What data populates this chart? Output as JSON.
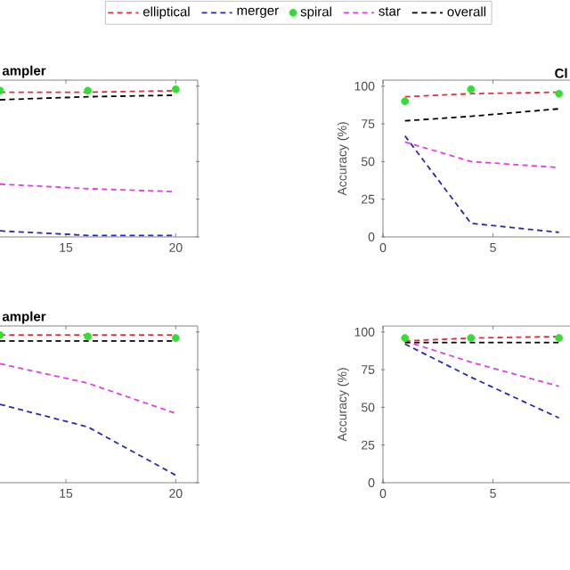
{
  "chart_data": [
    {
      "type": "line",
      "title": "ampler",
      "legend": "top",
      "line_style": "dashed",
      "x": [
        12,
        16,
        20
      ],
      "xlim": [
        12,
        21
      ],
      "ylim": [
        0,
        104
      ],
      "xticks": [
        15,
        20
      ],
      "yticks": [
        0,
        25,
        50,
        75,
        100
      ],
      "tick_labels": "x",
      "series": [
        {
          "name": "elliptical",
          "color": "#e0303a",
          "values": [
            96,
            96,
            97
          ]
        },
        {
          "name": "merger",
          "color": "#2a2aa8",
          "values": [
            4,
            1,
            1
          ]
        },
        {
          "name": "spiral",
          "type": "scatter",
          "color": "#33dd33",
          "values": [
            97,
            97,
            98
          ]
        },
        {
          "name": "star",
          "color": "#e040e0",
          "values": [
            35,
            32,
            30
          ]
        },
        {
          "name": "overall",
          "color": "#000000",
          "values": [
            91,
            93,
            94
          ]
        }
      ]
    },
    {
      "type": "line",
      "title": "Cl",
      "ylabel": "Accuracy (%)",
      "line_style": "dashed",
      "x": [
        1,
        4,
        8
      ],
      "xlim": [
        0,
        8.5
      ],
      "ylim": [
        0,
        104
      ],
      "xticks": [
        0,
        5
      ],
      "yticks": [
        0,
        25,
        50,
        75,
        100
      ],
      "series": [
        {
          "color": "#e0303a",
          "values": [
            93,
            95,
            96
          ]
        },
        {
          "color": "#2a2aa8",
          "values": [
            67,
            9,
            3
          ]
        },
        {
          "type": "scatter",
          "color": "#33dd33",
          "values": [
            90,
            98,
            95
          ]
        },
        {
          "color": "#e040e0",
          "values": [
            63,
            50,
            46
          ]
        },
        {
          "color": "#000000",
          "values": [
            77,
            80,
            85
          ]
        }
      ]
    },
    {
      "type": "line",
      "title": "ampler",
      "line_style": "dashed",
      "x": [
        12,
        16,
        20
      ],
      "xlim": [
        12,
        21
      ],
      "ylim": [
        0,
        104
      ],
      "xticks": [
        15,
        20
      ],
      "yticks": [
        0,
        25,
        50,
        75,
        100
      ],
      "tick_labels": "x",
      "series": [
        {
          "color": "#e0303a",
          "values": [
            98,
            98,
            98
          ]
        },
        {
          "color": "#2a2aa8",
          "values": [
            52,
            37,
            5
          ]
        },
        {
          "type": "scatter",
          "color": "#33dd33",
          "values": [
            98,
            97,
            96
          ]
        },
        {
          "color": "#e040e0",
          "values": [
            79,
            66,
            46
          ]
        },
        {
          "color": "#000000",
          "values": [
            94,
            94,
            94
          ]
        }
      ]
    },
    {
      "type": "line",
      "ylabel": "Accuracy (%)",
      "line_style": "dashed",
      "x": [
        1,
        4,
        8
      ],
      "xlim": [
        0,
        8.5
      ],
      "ylim": [
        0,
        104
      ],
      "xticks": [
        0,
        5
      ],
      "yticks": [
        0,
        25,
        50,
        75,
        100
      ],
      "series": [
        {
          "color": "#e0303a",
          "values": [
            94,
            96,
            97
          ]
        },
        {
          "color": "#2a2aa8",
          "values": [
            92,
            70,
            43
          ]
        },
        {
          "type": "scatter",
          "color": "#33dd33",
          "values": [
            96,
            96,
            96
          ]
        },
        {
          "color": "#e040e0",
          "values": [
            94,
            80,
            64
          ]
        },
        {
          "color": "#000000",
          "values": [
            93,
            93,
            93
          ]
        }
      ]
    }
  ]
}
